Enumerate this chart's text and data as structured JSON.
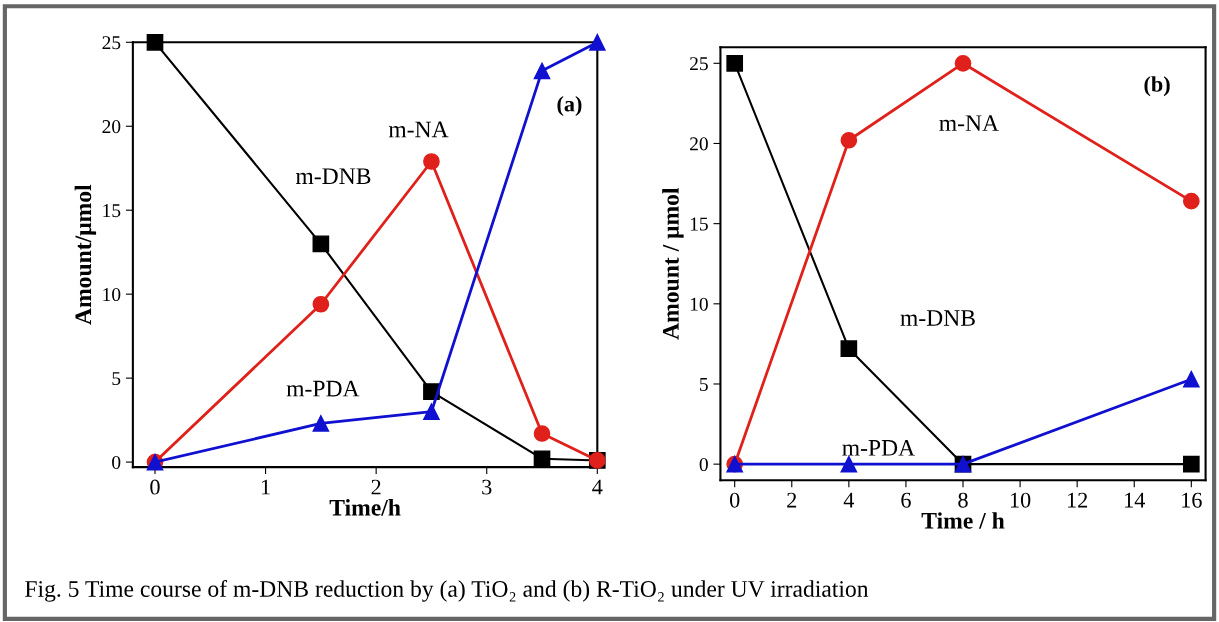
{
  "chart_data": [
    {
      "type": "line",
      "xlabel": "Time/h",
      "ylabel": "Amount/μmol",
      "xlim": [
        -0.2,
        4.0
      ],
      "ylim": [
        -0.3,
        25
      ],
      "xticks": [
        0,
        1,
        2,
        3,
        4
      ],
      "yticks": [
        0,
        5,
        10,
        15,
        20,
        25
      ],
      "x": [
        0,
        1.5,
        2.5,
        3.5,
        4
      ],
      "grid": false,
      "legend": false,
      "annotations": [
        "(a)",
        "Fig. 5 Time course of m-DNB reduction by (a) TiO₂ and (b) R-TiO₂ under UV irradiation"
      ],
      "series": [
        {
          "name": "m-DNB",
          "color": "#000000",
          "marker": "square",
          "values": [
            25,
            13,
            4.2,
            0.2,
            0.1
          ]
        },
        {
          "name": "m-NA",
          "color": "#e0201a",
          "marker": "circle",
          "values": [
            0,
            9.4,
            17.9,
            1.7,
            0.1
          ]
        },
        {
          "name": "m-PDA",
          "color": "#1010d0",
          "marker": "triangle",
          "values": [
            0,
            2.3,
            3,
            23.3,
            25
          ]
        }
      ]
    },
    {
      "type": "line",
      "xlabel": "Time / h",
      "ylabel": "Amount / μmol",
      "xlim": [
        -0.5,
        16.5
      ],
      "ylim": [
        -1,
        26
      ],
      "xticks": [
        0,
        2,
        4,
        6,
        8,
        10,
        12,
        14,
        16
      ],
      "yticks": [
        0,
        5,
        10,
        15,
        20,
        25
      ],
      "x": [
        0,
        4,
        8,
        16
      ],
      "grid": false,
      "legend": false,
      "annotations": [
        "(b)"
      ],
      "series": [
        {
          "name": "m-DNB",
          "color": "#000000",
          "marker": "square",
          "values": [
            25,
            7.2,
            0,
            0
          ]
        },
        {
          "name": "m-NA",
          "color": "#e0201a",
          "marker": "circle",
          "values": [
            0,
            20.2,
            25,
            16.4
          ]
        },
        {
          "name": "m-PDA",
          "color": "#1010d0",
          "marker": "triangle",
          "values": [
            0,
            0,
            0,
            5.3
          ]
        }
      ]
    }
  ]
}
